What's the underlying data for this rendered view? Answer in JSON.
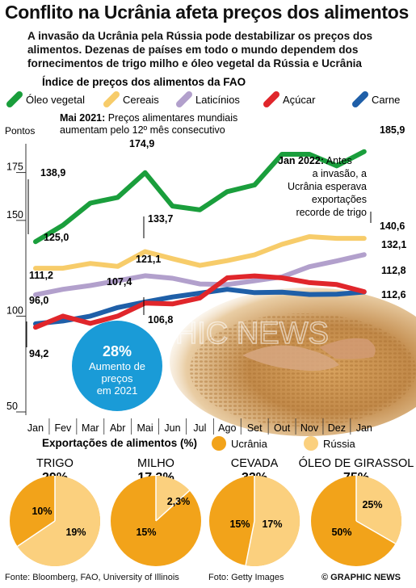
{
  "header": {
    "title": "Conflito na Ucrânia afeta preços dos alimentos",
    "subtitle": "A invasão da Ucrânia pela Rússia pode destabilizar os preços dos alimentos. Dezenas de países em todo o mundo dependem dos fornecimentos de trigo milho e óleo vegetal da Rússia e Ucrânia"
  },
  "watermark": "GRAPHIC NEWS",
  "colors": {
    "oleo": "#1a9e3c",
    "cereais": "#f7cc6a",
    "laticinios": "#b2a0cc",
    "acucar": "#e0262b",
    "carne": "#1f5fa8",
    "ucrania": "#f2a31a",
    "russia": "#fbd07e",
    "badge": "#1a9bd7"
  },
  "chart_data": [
    {
      "type": "line",
      "title": "Índice de preços dos alimentos da FAO",
      "ylabel": "Pontos",
      "ylim": [
        50,
        190
      ],
      "yticks": [
        "50",
        "100",
        "150",
        "175"
      ],
      "categories": [
        "Jan",
        "Fev",
        "Mar",
        "Abr",
        "Mai",
        "Jun",
        "Jul",
        "Ago",
        "Set",
        "Out",
        "Nov",
        "Dez",
        "Jan"
      ],
      "legend": [
        "Óleo vegetal",
        "Cereais",
        "Laticínios",
        "Açúcar",
        "Carne"
      ],
      "series": [
        {
          "name": "Óleo vegetal",
          "color": "#1a9e3c",
          "values": [
            138.9,
            147.5,
            159.0,
            162.0,
            174.9,
            157.5,
            155.5,
            165.0,
            168.5,
            184.5,
            184.5,
            178.5,
            185.9
          ]
        },
        {
          "name": "Cereais",
          "color": "#f7cc6a",
          "values": [
            125.0,
            125.0,
            127.5,
            126.0,
            133.7,
            130.0,
            126.5,
            129.0,
            132.0,
            137.5,
            141.5,
            140.6,
            140.6
          ]
        },
        {
          "name": "Laticínios",
          "color": "#b2a0cc",
          "values": [
            111.2,
            114.0,
            116.0,
            118.5,
            121.1,
            119.8,
            116.8,
            116.5,
            118.5,
            120.5,
            125.8,
            128.8,
            132.1
          ]
        },
        {
          "name": "Açúcar",
          "color": "#e0262b",
          "values": [
            94.2,
            100.0,
            96.2,
            100.0,
            106.8,
            106.4,
            109.5,
            120.0,
            121.0,
            120.0,
            117.5,
            116.5,
            112.8
          ]
        },
        {
          "name": "Carne",
          "color": "#1f5fa8",
          "values": [
            96.0,
            97.5,
            100.0,
            104.5,
            107.4,
            110.0,
            112.0,
            114.0,
            112.3,
            112.5,
            111.3,
            111.5,
            112.6
          ]
        }
      ],
      "value_labels": {
        "oleo_jan": "138,9",
        "oleo_mai": "174,9",
        "oleo_end": "185,9",
        "cereais_jan": "125,0",
        "cereais_mai": "133,7",
        "cereais_end": "140,6",
        "laticinios_jan": "111,2",
        "laticinios_mai": "121,1",
        "laticinios_end": "132,1",
        "acucar_jan": "94,2",
        "acucar_mai": "106,8",
        "acucar_end": "112,8",
        "carne_jan": "96,0",
        "carne_mai": "107,4",
        "carne_end": "112,6"
      },
      "annotations": {
        "mai_bold": "Mai 2021:",
        "mai_line1": " Preços alimentares mundiais",
        "mai_line2": "aumentam pelo 12º mês consecutivo",
        "jan_bold": "Jan 2022:",
        "jan_line1": " Antes",
        "jan_line2": "a invasão, a",
        "jan_line3": "Ucrânia esperava",
        "jan_line4": "exportações",
        "jan_line5": "recorde de trigo"
      },
      "badge": {
        "value": "28%",
        "line1": "Aumento de",
        "line2": "preços",
        "line3": "em 2021"
      }
    },
    {
      "type": "pie",
      "title": "Exportações de alimentos (%)",
      "legend": [
        "Ucrânia",
        "Rússia"
      ],
      "pies": [
        {
          "name": "TRIGO",
          "total": "29%",
          "ucrania": 10,
          "russia": 19,
          "ucrania_label": "10%",
          "russia_label": "19%"
        },
        {
          "name": "MILHO",
          "total": "17,3%",
          "ucrania": 15,
          "russia": 2.3,
          "ucrania_label": "15%",
          "russia_label": "2,3%"
        },
        {
          "name": "CEVADA",
          "total": "32%",
          "ucrania": 15,
          "russia": 17,
          "ucrania_label": "15%",
          "russia_label": "17%"
        },
        {
          "name": "ÓLEO DE GIRASSOL",
          "total": "75%",
          "ucrania": 50,
          "russia": 25,
          "ucrania_label": "50%",
          "russia_label": "25%"
        }
      ]
    }
  ],
  "footer": {
    "source": "Fonte: Bloomberg, FAO, University of Illinois",
    "photo": "Foto: Getty Images",
    "copyright": "© GRAPHIC NEWS"
  }
}
